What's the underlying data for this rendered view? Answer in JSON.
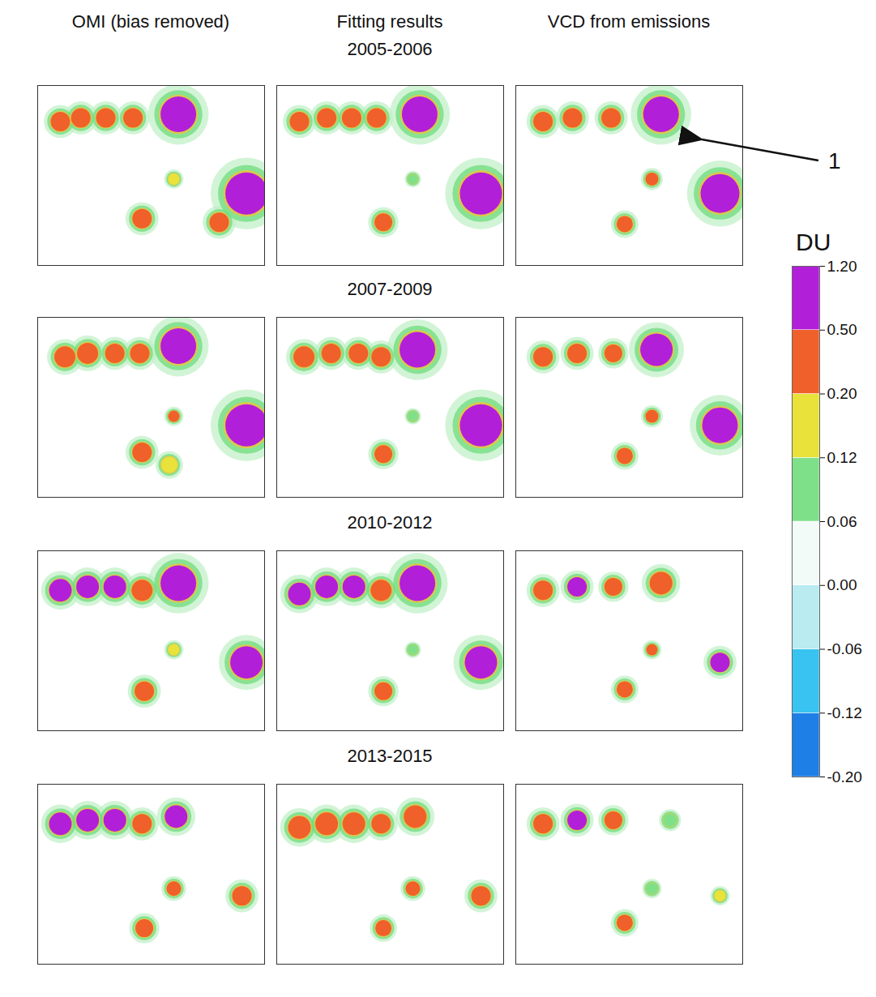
{
  "chart_data": {
    "type": "map_panels",
    "columns": [
      "OMI (bias removed)",
      "Fitting results",
      "VCD from emissions"
    ],
    "xlim": [
      0,
      100
    ],
    "ylim": [
      0,
      100
    ],
    "tick_labels": false,
    "rows": [
      {
        "title": "2005-2006",
        "panels": [
          {
            "hotspots": [
              {
                "x": 10,
                "y": 20,
                "value": 0.35,
                "size": 12
              },
              {
                "x": 19,
                "y": 18,
                "value": 0.35,
                "size": 12
              },
              {
                "x": 30,
                "y": 18,
                "value": 0.35,
                "size": 12
              },
              {
                "x": 42,
                "y": 18,
                "value": 0.4,
                "size": 12
              },
              {
                "x": 62,
                "y": 16,
                "value": 0.9,
                "size": 22
              },
              {
                "x": 92,
                "y": 60,
                "value": 1.2,
                "size": 26
              },
              {
                "x": 46,
                "y": 74,
                "value": 0.35,
                "size": 12
              },
              {
                "x": 60,
                "y": 52,
                "value": 0.12,
                "size": 7
              },
              {
                "x": 80,
                "y": 76,
                "value": 0.22,
                "size": 12
              }
            ]
          },
          {
            "hotspots": [
              {
                "x": 10,
                "y": 20,
                "value": 0.4,
                "size": 12
              },
              {
                "x": 22,
                "y": 18,
                "value": 0.35,
                "size": 12
              },
              {
                "x": 33,
                "y": 18,
                "value": 0.35,
                "size": 12
              },
              {
                "x": 44,
                "y": 18,
                "value": 0.4,
                "size": 12
              },
              {
                "x": 63,
                "y": 16,
                "value": 0.9,
                "size": 22
              },
              {
                "x": 90,
                "y": 60,
                "value": 1.2,
                "size": 26
              },
              {
                "x": 47,
                "y": 76,
                "value": 0.35,
                "size": 11
              },
              {
                "x": 60,
                "y": 52,
                "value": 0.08,
                "size": 6
              }
            ]
          },
          {
            "hotspots": [
              {
                "x": 12,
                "y": 20,
                "value": 0.4,
                "size": 12
              },
              {
                "x": 25,
                "y": 18,
                "value": 0.35,
                "size": 12
              },
              {
                "x": 42,
                "y": 18,
                "value": 0.4,
                "size": 12
              },
              {
                "x": 64,
                "y": 16,
                "value": 0.8,
                "size": 22
              },
              {
                "x": 90,
                "y": 60,
                "value": 1.2,
                "size": 24
              },
              {
                "x": 48,
                "y": 77,
                "value": 0.3,
                "size": 10
              },
              {
                "x": 60,
                "y": 52,
                "value": 0.25,
                "size": 8
              }
            ]
          }
        ]
      },
      {
        "title": "2007-2009",
        "panels": [
          {
            "hotspots": [
              {
                "x": 12,
                "y": 22,
                "value": 0.45,
                "size": 13
              },
              {
                "x": 22,
                "y": 20,
                "value": 0.45,
                "size": 13
              },
              {
                "x": 34,
                "y": 20,
                "value": 0.4,
                "size": 12
              },
              {
                "x": 45,
                "y": 20,
                "value": 0.4,
                "size": 12
              },
              {
                "x": 62,
                "y": 16,
                "value": 1.0,
                "size": 22
              },
              {
                "x": 92,
                "y": 60,
                "value": 1.2,
                "size": 26
              },
              {
                "x": 60,
                "y": 55,
                "value": 0.2,
                "size": 7
              },
              {
                "x": 46,
                "y": 75,
                "value": 0.3,
                "size": 12
              },
              {
                "x": 58,
                "y": 82,
                "value": 0.12,
                "size": 10
              }
            ]
          },
          {
            "hotspots": [
              {
                "x": 12,
                "y": 22,
                "value": 0.45,
                "size": 13
              },
              {
                "x": 24,
                "y": 20,
                "value": 0.4,
                "size": 12
              },
              {
                "x": 36,
                "y": 20,
                "value": 0.4,
                "size": 12
              },
              {
                "x": 46,
                "y": 22,
                "value": 0.4,
                "size": 12
              },
              {
                "x": 62,
                "y": 18,
                "value": 1.0,
                "size": 22
              },
              {
                "x": 90,
                "y": 60,
                "value": 1.2,
                "size": 26
              },
              {
                "x": 60,
                "y": 55,
                "value": 0.1,
                "size": 6
              },
              {
                "x": 47,
                "y": 76,
                "value": 0.3,
                "size": 11
              }
            ]
          },
          {
            "hotspots": [
              {
                "x": 12,
                "y": 22,
                "value": 0.35,
                "size": 12
              },
              {
                "x": 27,
                "y": 20,
                "value": 0.45,
                "size": 12
              },
              {
                "x": 43,
                "y": 20,
                "value": 0.35,
                "size": 11
              },
              {
                "x": 62,
                "y": 18,
                "value": 0.7,
                "size": 20
              },
              {
                "x": 90,
                "y": 60,
                "value": 0.8,
                "size": 22
              },
              {
                "x": 60,
                "y": 55,
                "value": 0.25,
                "size": 8
              },
              {
                "x": 48,
                "y": 77,
                "value": 0.3,
                "size": 10
              }
            ]
          }
        ]
      },
      {
        "title": "2010-2012",
        "panels": [
          {
            "hotspots": [
              {
                "x": 10,
                "y": 22,
                "value": 0.5,
                "size": 14
              },
              {
                "x": 22,
                "y": 20,
                "value": 0.5,
                "size": 14
              },
              {
                "x": 34,
                "y": 20,
                "value": 0.5,
                "size": 14
              },
              {
                "x": 46,
                "y": 22,
                "value": 0.4,
                "size": 13
              },
              {
                "x": 62,
                "y": 18,
                "value": 1.0,
                "size": 22
              },
              {
                "x": 92,
                "y": 62,
                "value": 0.8,
                "size": 20
              },
              {
                "x": 60,
                "y": 55,
                "value": 0.12,
                "size": 7
              },
              {
                "x": 47,
                "y": 78,
                "value": 0.35,
                "size": 12
              }
            ]
          },
          {
            "hotspots": [
              {
                "x": 10,
                "y": 24,
                "value": 0.5,
                "size": 14
              },
              {
                "x": 22,
                "y": 20,
                "value": 0.5,
                "size": 14
              },
              {
                "x": 34,
                "y": 20,
                "value": 0.5,
                "size": 14
              },
              {
                "x": 46,
                "y": 22,
                "value": 0.4,
                "size": 13
              },
              {
                "x": 62,
                "y": 18,
                "value": 0.9,
                "size": 22
              },
              {
                "x": 90,
                "y": 62,
                "value": 0.7,
                "size": 20
              },
              {
                "x": 60,
                "y": 55,
                "value": 0.1,
                "size": 6
              },
              {
                "x": 47,
                "y": 78,
                "value": 0.3,
                "size": 11
              }
            ]
          },
          {
            "hotspots": [
              {
                "x": 12,
                "y": 22,
                "value": 0.35,
                "size": 12
              },
              {
                "x": 27,
                "y": 20,
                "value": 0.5,
                "size": 12
              },
              {
                "x": 43,
                "y": 20,
                "value": 0.35,
                "size": 11
              },
              {
                "x": 64,
                "y": 18,
                "value": 0.35,
                "size": 14
              },
              {
                "x": 60,
                "y": 55,
                "value": 0.2,
                "size": 7
              },
              {
                "x": 90,
                "y": 62,
                "value": 0.5,
                "size": 12
              },
              {
                "x": 48,
                "y": 77,
                "value": 0.3,
                "size": 10
              }
            ]
          }
        ]
      },
      {
        "title": "2013-2015",
        "panels": [
          {
            "hotspots": [
              {
                "x": 10,
                "y": 22,
                "value": 0.5,
                "size": 14
              },
              {
                "x": 22,
                "y": 20,
                "value": 0.5,
                "size": 14
              },
              {
                "x": 34,
                "y": 20,
                "value": 0.5,
                "size": 14
              },
              {
                "x": 46,
                "y": 22,
                "value": 0.35,
                "size": 12
              },
              {
                "x": 61,
                "y": 18,
                "value": 0.5,
                "size": 14
              },
              {
                "x": 60,
                "y": 58,
                "value": 0.2,
                "size": 9
              },
              {
                "x": 90,
                "y": 62,
                "value": 0.4,
                "size": 12
              },
              {
                "x": 47,
                "y": 80,
                "value": 0.2,
                "size": 11
              }
            ]
          },
          {
            "hotspots": [
              {
                "x": 10,
                "y": 24,
                "value": 0.45,
                "size": 14
              },
              {
                "x": 22,
                "y": 22,
                "value": 0.45,
                "size": 14
              },
              {
                "x": 34,
                "y": 22,
                "value": 0.45,
                "size": 14
              },
              {
                "x": 46,
                "y": 22,
                "value": 0.35,
                "size": 12
              },
              {
                "x": 61,
                "y": 18,
                "value": 0.45,
                "size": 14
              },
              {
                "x": 60,
                "y": 58,
                "value": 0.3,
                "size": 9
              },
              {
                "x": 90,
                "y": 62,
                "value": 0.45,
                "size": 12
              },
              {
                "x": 47,
                "y": 80,
                "value": 0.2,
                "size": 10
              }
            ]
          },
          {
            "hotspots": [
              {
                "x": 12,
                "y": 22,
                "value": 0.35,
                "size": 12
              },
              {
                "x": 27,
                "y": 20,
                "value": 0.5,
                "size": 12
              },
              {
                "x": 43,
                "y": 20,
                "value": 0.35,
                "size": 11
              },
              {
                "x": 68,
                "y": 20,
                "value": 0.08,
                "size": 8
              },
              {
                "x": 60,
                "y": 58,
                "value": 0.1,
                "size": 7
              },
              {
                "x": 90,
                "y": 62,
                "value": 0.12,
                "size": 7
              },
              {
                "x": 48,
                "y": 77,
                "value": 0.3,
                "size": 10
              }
            ]
          }
        ]
      }
    ],
    "colorbar": {
      "label": "DU",
      "ticks": [
        {
          "value": -0.2,
          "label": "-0.20"
        },
        {
          "value": -0.12,
          "label": "-0.12"
        },
        {
          "value": -0.06,
          "label": "-0.06"
        },
        {
          "value": 0,
          "label": "0.00"
        },
        {
          "value": 0.06,
          "label": "0.06"
        },
        {
          "value": 0.12,
          "label": "0.12"
        },
        {
          "value": 0.2,
          "label": "0.20"
        },
        {
          "value": 0.5,
          "label": "0.50"
        },
        {
          "value": 1.2,
          "label": "1.20"
        }
      ],
      "colors": [
        "#1e7fe6",
        "#39c3f0",
        "#b9ebf0",
        "#f2fbf8",
        "#7fe08a",
        "#e8e23a",
        "#f0602a",
        "#b21fd8"
      ]
    },
    "annotations": [
      {
        "text": "1"
      }
    ]
  }
}
